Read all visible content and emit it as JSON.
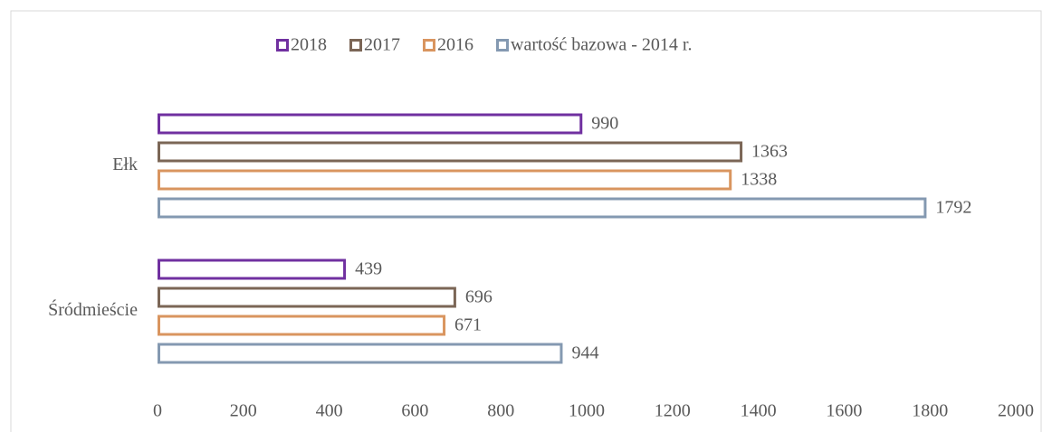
{
  "chart_data": {
    "type": "barh",
    "categories": [
      "Ełk",
      "Śródmieście"
    ],
    "series": [
      {
        "name": "2018",
        "color": "#7030a0",
        "values": [
          990,
          439
        ]
      },
      {
        "name": "2017",
        "color": "#7b6656",
        "values": [
          1363,
          696
        ]
      },
      {
        "name": "2016",
        "color": "#d9955f",
        "values": [
          1338,
          671
        ]
      },
      {
        "name": "wartość bazowa - 2014 r.",
        "color": "#8499b1",
        "values": [
          1792,
          944
        ]
      }
    ],
    "xlim": [
      0,
      2000
    ],
    "xticks": [
      0,
      200,
      400,
      600,
      800,
      1000,
      1200,
      1400,
      1600,
      1800,
      2000
    ],
    "legend": "top"
  }
}
